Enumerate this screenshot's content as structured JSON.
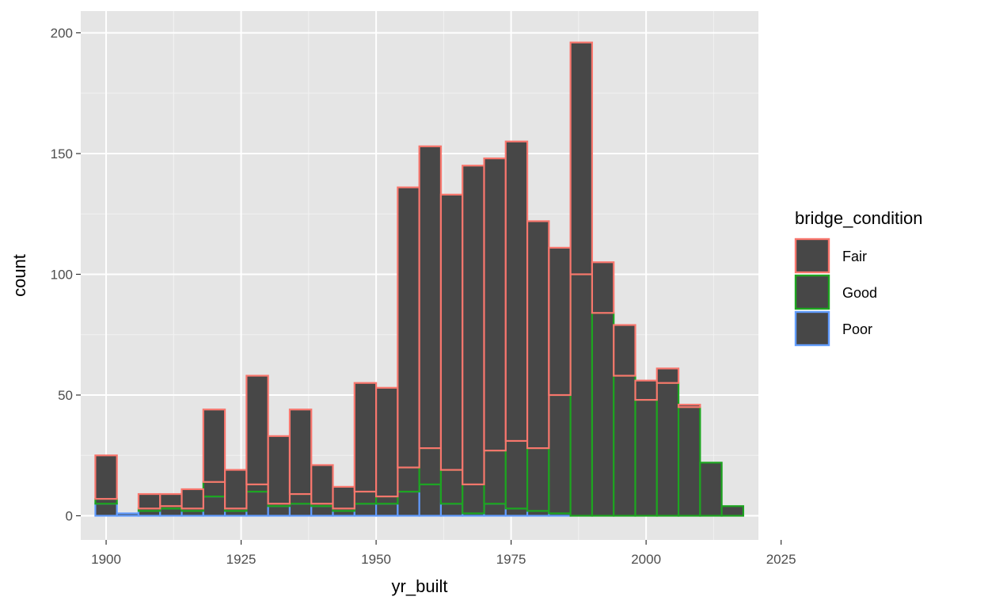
{
  "chart_data": {
    "type": "bar",
    "stacked": true,
    "xlabel": "yr_built",
    "ylabel": "count",
    "xlim": [
      1895.3,
      2020.8
    ],
    "ylim": [
      -10,
      209
    ],
    "xticks": [
      1900,
      1925,
      1950,
      1975,
      2000,
      2025
    ],
    "yticks": [
      0,
      50,
      100,
      150,
      200
    ],
    "bin_width": 4,
    "bin_starts": [
      1898,
      1902,
      1906,
      1910,
      1914,
      1918,
      1922,
      1926,
      1930,
      1934,
      1938,
      1942,
      1946,
      1950,
      1954,
      1958,
      1962,
      1966,
      1970,
      1974,
      1978,
      1982,
      1986,
      1990,
      1994,
      1998,
      2002,
      2006,
      2010,
      2014
    ],
    "legend": {
      "title": "bridge_condition",
      "position": "right"
    },
    "background": "#e5e5e5",
    "fill_color": "#474747",
    "series": [
      {
        "name": "Poor",
        "color": "#619CFF",
        "values": [
          5,
          1,
          2,
          3,
          2,
          8,
          2,
          10,
          4,
          5,
          4,
          2,
          5,
          5,
          10,
          13,
          5,
          1,
          5,
          3,
          2,
          1,
          0,
          0,
          0,
          0,
          0,
          0,
          0,
          0
        ]
      },
      {
        "name": "Good",
        "color": "#1DA520",
        "values": [
          2,
          0,
          1,
          1,
          1,
          6,
          1,
          3,
          1,
          4,
          1,
          1,
          5,
          3,
          10,
          15,
          14,
          12,
          22,
          28,
          26,
          49,
          100,
          84,
          58,
          48,
          55,
          45,
          22,
          4
        ]
      },
      {
        "name": "Fair",
        "color": "#F8766D",
        "values": [
          18,
          0,
          6,
          5,
          8,
          30,
          16,
          45,
          28,
          35,
          16,
          9,
          45,
          45,
          116,
          125,
          114,
          132,
          121,
          124,
          94,
          61,
          96,
          21,
          21,
          8,
          6,
          1,
          0,
          0
        ]
      }
    ]
  }
}
